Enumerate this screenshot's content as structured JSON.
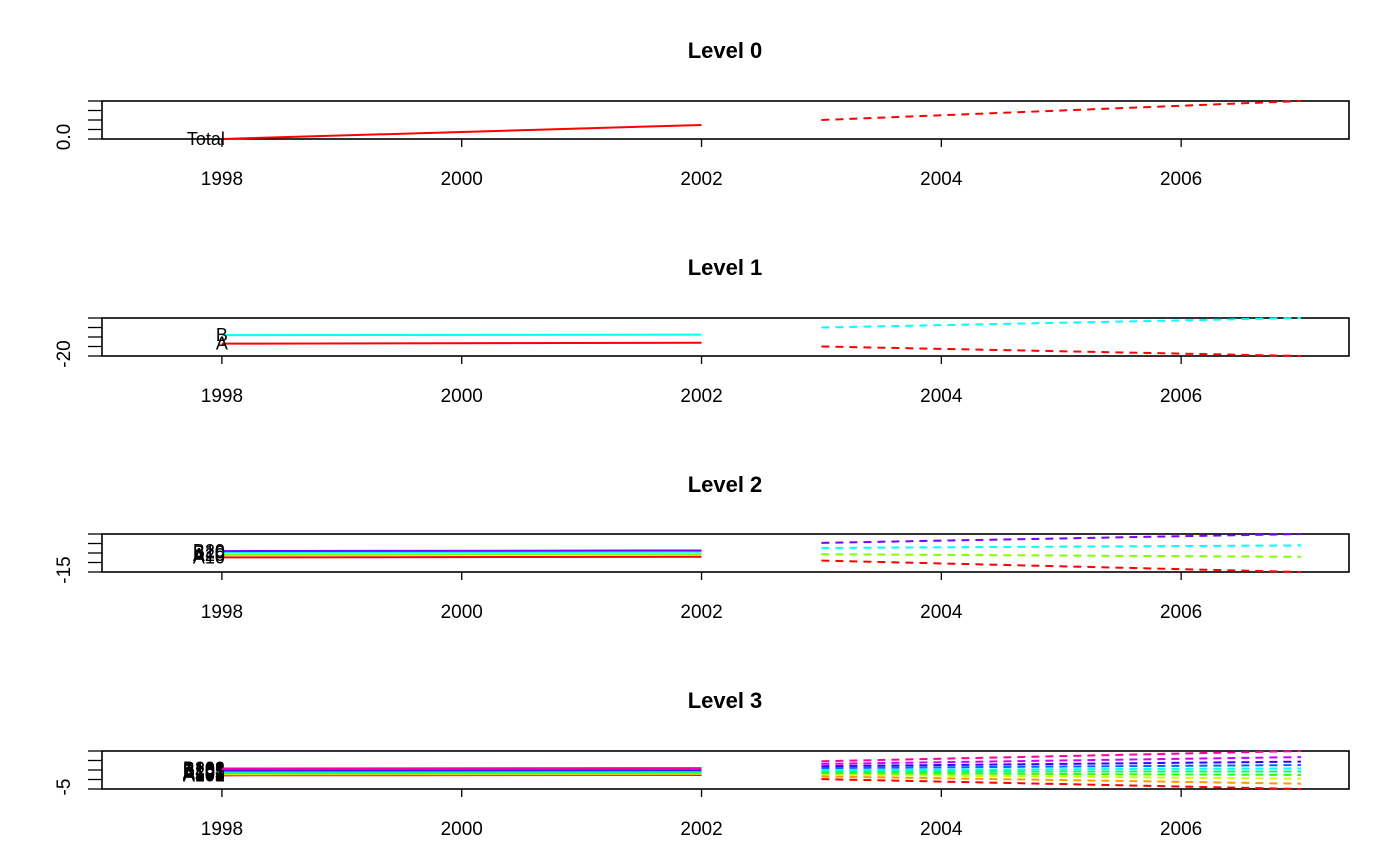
{
  "chart_data": [
    {
      "type": "line",
      "title": "Level 0",
      "x_ticks": [
        "1998",
        "2000",
        "2002",
        "2004",
        "2006"
      ],
      "xlim": [
        1997.0,
        2007.4
      ],
      "y_ticks": [
        "0.0"
      ],
      "y_tick_values": [
        0.0
      ],
      "ylim": [
        0.0,
        1.0
      ],
      "series": [
        {
          "name": "Total",
          "color": "#ff0000",
          "history": {
            "x": [
              1998,
              2002
            ],
            "y": [
              0.0,
              0.37
            ]
          },
          "forecast": {
            "x": [
              2003,
              2007
            ],
            "y": [
              0.5,
              1.0
            ]
          }
        }
      ]
    },
    {
      "type": "line",
      "title": "Level 1",
      "x_ticks": [
        "1998",
        "2000",
        "2002",
        "2004",
        "2006"
      ],
      "xlim": [
        1997.0,
        2007.4
      ],
      "y_ticks": [
        "-20"
      ],
      "y_tick_values": [
        -20
      ],
      "ylim": [
        -20,
        20
      ],
      "series": [
        {
          "name": "A",
          "color": "#ff0000",
          "history": {
            "x": [
              1998,
              2002
            ],
            "y": [
              -7,
              -6
            ]
          },
          "forecast": {
            "x": [
              2003,
              2007
            ],
            "y": [
              -10,
              -20
            ]
          }
        },
        {
          "name": "B",
          "color": "#00ffff",
          "history": {
            "x": [
              1998,
              2002
            ],
            "y": [
              2,
              2.5
            ]
          },
          "forecast": {
            "x": [
              2003,
              2007
            ],
            "y": [
              10,
              20
            ]
          }
        }
      ]
    },
    {
      "type": "line",
      "title": "Level 2",
      "x_ticks": [
        "1998",
        "2000",
        "2002",
        "2004",
        "2006"
      ],
      "xlim": [
        1997.0,
        2007.4
      ],
      "y_ticks": [
        "-15"
      ],
      "y_tick_values": [
        -15
      ],
      "ylim": [
        -15,
        15
      ],
      "series": [
        {
          "name": "A10",
          "color": "#ff0000",
          "history": {
            "x": [
              1998,
              2002
            ],
            "y": [
              -3.5,
              -3
            ]
          },
          "forecast": {
            "x": [
              2003,
              2007
            ],
            "y": [
              -6,
              -15
            ]
          }
        },
        {
          "name": "A20",
          "color": "#80ff00",
          "history": {
            "x": [
              1998,
              2002
            ],
            "y": [
              -1.5,
              -1
            ]
          },
          "forecast": {
            "x": [
              2003,
              2007
            ],
            "y": [
              -1,
              -3
            ]
          }
        },
        {
          "name": "B10",
          "color": "#00ffff",
          "history": {
            "x": [
              1998,
              2002
            ],
            "y": [
              0.5,
              1
            ]
          },
          "forecast": {
            "x": [
              2003,
              2007
            ],
            "y": [
              4,
              6
            ]
          }
        },
        {
          "name": "B20",
          "color": "#8000ff",
          "history": {
            "x": [
              1998,
              2002
            ],
            "y": [
              1.5,
              2
            ]
          },
          "forecast": {
            "x": [
              2003,
              2007
            ],
            "y": [
              8,
              15
            ]
          }
        }
      ]
    },
    {
      "type": "line",
      "title": "Level 3",
      "x_ticks": [
        "1998",
        "2000",
        "2002",
        "2004",
        "2006"
      ],
      "xlim": [
        1997.0,
        2007.4
      ],
      "y_ticks": [
        "-5"
      ],
      "y_tick_values": [
        -5
      ],
      "ylim": [
        -5,
        5
      ],
      "series": [
        {
          "name": "A101",
          "color": "#ff0000",
          "history": {
            "x": [
              1998,
              2002
            ],
            "y": [
              -1.4,
              -1.3
            ]
          },
          "forecast": {
            "x": [
              2003,
              2007
            ],
            "y": [
              -2.4,
              -5
            ]
          }
        },
        {
          "name": "A102",
          "color": "#ff9900",
          "history": {
            "x": [
              1998,
              2002
            ],
            "y": [
              -1.2,
              -1.1
            ]
          },
          "forecast": {
            "x": [
              2003,
              2007
            ],
            "y": [
              -1.7,
              -3.6
            ]
          }
        },
        {
          "name": "A103",
          "color": "#ccff00",
          "history": {
            "x": [
              1998,
              2002
            ],
            "y": [
              -1.0,
              -0.9
            ]
          },
          "forecast": {
            "x": [
              2003,
              2007
            ],
            "y": [
              -1.2,
              -2.3
            ]
          }
        },
        {
          "name": "A201",
          "color": "#33ff00",
          "history": {
            "x": [
              1998,
              2002
            ],
            "y": [
              -0.8,
              -0.7
            ]
          },
          "forecast": {
            "x": [
              2003,
              2007
            ],
            "y": [
              -0.8,
              -1.3
            ]
          }
        },
        {
          "name": "A202",
          "color": "#00ff66",
          "history": {
            "x": [
              1998,
              2002
            ],
            "y": [
              -0.6,
              -0.5
            ]
          },
          "forecast": {
            "x": [
              2003,
              2007
            ],
            "y": [
              -0.4,
              -0.4
            ]
          }
        },
        {
          "name": "B101",
          "color": "#00ffff",
          "history": {
            "x": [
              1998,
              2002
            ],
            "y": [
              -0.4,
              -0.3
            ]
          },
          "forecast": {
            "x": [
              2003,
              2007
            ],
            "y": [
              0.0,
              0.4
            ]
          }
        },
        {
          "name": "B102",
          "color": "#0066ff",
          "history": {
            "x": [
              1998,
              2002
            ],
            "y": [
              -0.2,
              -0.1
            ]
          },
          "forecast": {
            "x": [
              2003,
              2007
            ],
            "y": [
              0.5,
              1.3
            ]
          }
        },
        {
          "name": "B103",
          "color": "#3300ff",
          "history": {
            "x": [
              1998,
              2002
            ],
            "y": [
              0.0,
              0.1
            ]
          },
          "forecast": {
            "x": [
              2003,
              2007
            ],
            "y": [
              1.0,
              2.2
            ]
          }
        },
        {
          "name": "B201",
          "color": "#cc00ff",
          "history": {
            "x": [
              1998,
              2002
            ],
            "y": [
              0.2,
              0.3
            ]
          },
          "forecast": {
            "x": [
              2003,
              2007
            ],
            "y": [
              1.6,
              3.4
            ]
          }
        },
        {
          "name": "B202",
          "color": "#ff0099",
          "history": {
            "x": [
              1998,
              2002
            ],
            "y": [
              0.4,
              0.5
            ]
          },
          "forecast": {
            "x": [
              2003,
              2007
            ],
            "y": [
              2.3,
              5
            ]
          }
        }
      ]
    }
  ]
}
